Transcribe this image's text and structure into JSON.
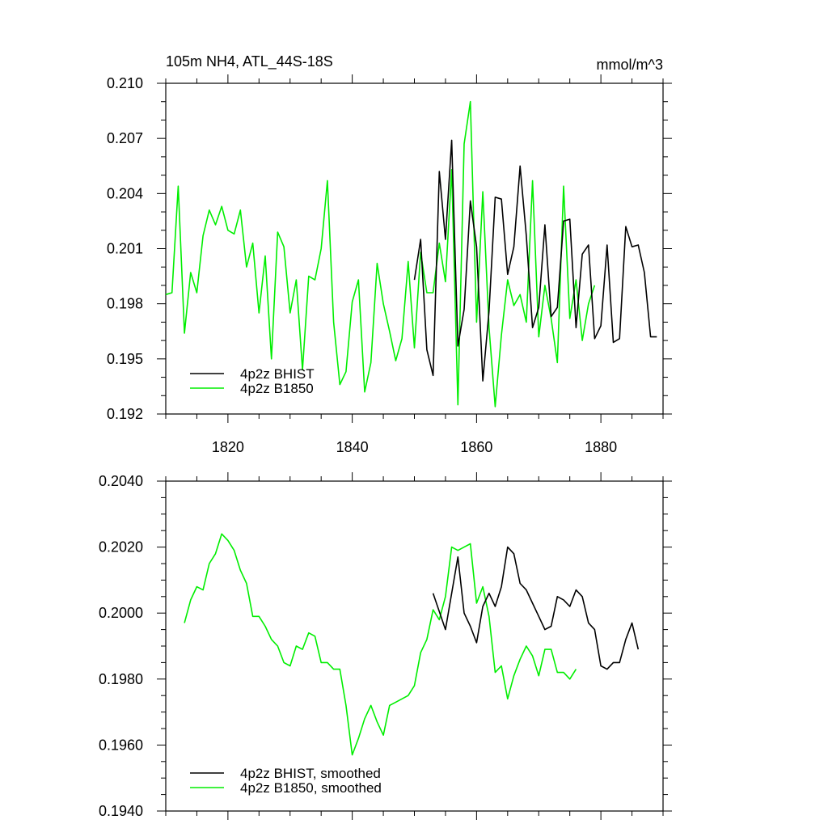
{
  "colors": {
    "bhist": "#000000",
    "b1850": "#00ee00"
  },
  "chart_data": [
    {
      "type": "line",
      "title": "105m NH4, ATL_44S-18S",
      "units": "mmol/m^3",
      "xlim": [
        1810,
        1890
      ],
      "ylim": [
        0.192,
        0.21
      ],
      "xticks": [
        1820,
        1840,
        1860,
        1880
      ],
      "xtick_labels": [
        "1820",
        "1840",
        "1860",
        "1880"
      ],
      "yticks": [
        0.192,
        0.195,
        0.198,
        0.201,
        0.204,
        0.207,
        0.21
      ],
      "ytick_labels": [
        "0.192",
        "0.195",
        "0.198",
        "0.201",
        "0.204",
        "0.207",
        "0.210"
      ],
      "legend_position": "bottom-left",
      "series": [
        {
          "name": "4p2z BHIST",
          "color_key": "bhist",
          "x": [
            1850,
            1851,
            1852,
            1853,
            1854,
            1855,
            1856,
            1857,
            1858,
            1859,
            1860,
            1861,
            1862,
            1863,
            1864,
            1865,
            1866,
            1867,
            1868,
            1869,
            1870,
            1871,
            1872,
            1873,
            1874,
            1875,
            1876,
            1877,
            1878,
            1879,
            1880,
            1881,
            1882,
            1883,
            1884,
            1885,
            1886,
            1887,
            1888,
            1889
          ],
          "values": [
            0.1993,
            0.2015,
            0.1955,
            0.1941,
            0.2052,
            0.2015,
            0.2069,
            0.1957,
            0.1977,
            0.2036,
            0.2011,
            0.1938,
            0.1976,
            0.2038,
            0.2037,
            0.1996,
            0.2011,
            0.2055,
            0.2017,
            0.1967,
            0.1978,
            0.2023,
            0.1973,
            0.1978,
            0.2025,
            0.2026,
            0.1967,
            0.2007,
            0.2012,
            0.1961,
            0.1968,
            0.2012,
            0.1959,
            0.1961,
            0.2022,
            0.2011,
            0.2012,
            0.1997,
            0.1962,
            0.1962
          ]
        },
        {
          "name": "4p2z B1850",
          "color_key": "b1850",
          "x": [
            1810,
            1811,
            1812,
            1813,
            1814,
            1815,
            1816,
            1817,
            1818,
            1819,
            1820,
            1821,
            1822,
            1823,
            1824,
            1825,
            1826,
            1827,
            1828,
            1829,
            1830,
            1831,
            1832,
            1833,
            1834,
            1835,
            1836,
            1837,
            1838,
            1839,
            1840,
            1841,
            1842,
            1843,
            1844,
            1845,
            1846,
            1847,
            1848,
            1849,
            1850,
            1851,
            1852,
            1853,
            1854,
            1855,
            1856,
            1857,
            1858,
            1859,
            1860,
            1861,
            1862,
            1863,
            1864,
            1865,
            1866,
            1867,
            1868,
            1869,
            1870,
            1871,
            1872,
            1873,
            1874,
            1875,
            1876,
            1877,
            1878,
            1879
          ],
          "values": [
            0.1985,
            0.1986,
            0.2044,
            0.1964,
            0.1997,
            0.1986,
            0.2017,
            0.2031,
            0.2023,
            0.2033,
            0.202,
            0.2018,
            0.2031,
            0.2,
            0.2013,
            0.1975,
            0.2006,
            0.195,
            0.2019,
            0.2011,
            0.1975,
            0.1993,
            0.1944,
            0.1995,
            0.1993,
            0.201,
            0.2047,
            0.197,
            0.1936,
            0.1943,
            0.1981,
            0.1993,
            0.1932,
            0.1948,
            0.2002,
            0.198,
            0.1965,
            0.1949,
            0.1961,
            0.2003,
            0.1956,
            0.2008,
            0.1986,
            0.1986,
            0.2013,
            0.1992,
            0.2053,
            0.1925,
            0.2067,
            0.209,
            0.197,
            0.2041,
            0.1967,
            0.1924,
            0.1963,
            0.1993,
            0.1979,
            0.1985,
            0.197,
            0.2047,
            0.1962,
            0.199,
            0.1972,
            0.1948,
            0.2044,
            0.1972,
            0.1993,
            0.196,
            0.198,
            0.199
          ]
        }
      ]
    },
    {
      "type": "line",
      "xlim": [
        1810,
        1890
      ],
      "ylim": [
        0.194,
        0.204
      ],
      "xticks": [
        1820,
        1840,
        1860,
        1880
      ],
      "yticks": [
        0.194,
        0.196,
        0.198,
        0.2,
        0.202,
        0.204
      ],
      "ytick_labels": [
        "0.1940",
        "0.1960",
        "0.1980",
        "0.2000",
        "0.2020",
        "0.2040"
      ],
      "legend_position": "bottom-left",
      "series": [
        {
          "name": "4p2z BHIST, smoothed",
          "color_key": "bhist",
          "x": [
            1853,
            1855,
            1857,
            1858,
            1859,
            1860,
            1861,
            1862,
            1863,
            1864,
            1865,
            1866,
            1867,
            1868,
            1869,
            1870,
            1871,
            1872,
            1873,
            1874,
            1875,
            1876,
            1877,
            1878,
            1879,
            1880,
            1881,
            1882,
            1883,
            1884,
            1885,
            1886
          ],
          "values": [
            0.2006,
            0.1995,
            0.2017,
            0.2,
            0.1996,
            0.1991,
            0.2002,
            0.2006,
            0.2002,
            0.2008,
            0.202,
            0.2018,
            0.2009,
            0.2007,
            0.2003,
            0.1999,
            0.1995,
            0.1996,
            0.2005,
            0.2004,
            0.2002,
            0.2007,
            0.2005,
            0.1997,
            0.1995,
            0.1984,
            0.1983,
            0.1985,
            0.1985,
            0.1992,
            0.1997,
            0.1989
          ]
        },
        {
          "name": "4p2z B1850, smoothed",
          "color_key": "b1850",
          "x": [
            1813,
            1814,
            1815,
            1816,
            1817,
            1818,
            1819,
            1820,
            1821,
            1822,
            1823,
            1824,
            1825,
            1826,
            1827,
            1828,
            1829,
            1830,
            1831,
            1832,
            1833,
            1834,
            1835,
            1836,
            1837,
            1838,
            1839,
            1840,
            1841,
            1842,
            1843,
            1844,
            1845,
            1846,
            1847,
            1848,
            1849,
            1850,
            1851,
            1852,
            1853,
            1854,
            1855,
            1856,
            1857,
            1858,
            1859,
            1860,
            1861,
            1862,
            1863,
            1864,
            1865,
            1866,
            1867,
            1868,
            1869,
            1870,
            1871,
            1872,
            1873,
            1874,
            1875,
            1876
          ],
          "values": [
            0.1997,
            0.2004,
            0.2008,
            0.2007,
            0.2015,
            0.2018,
            0.2024,
            0.2022,
            0.2019,
            0.2013,
            0.2009,
            0.1999,
            0.1999,
            0.1996,
            0.1992,
            0.199,
            0.1985,
            0.1984,
            0.199,
            0.1989,
            0.1994,
            0.1993,
            0.1985,
            0.1985,
            0.1983,
            0.1983,
            0.1972,
            0.1957,
            0.1962,
            0.1968,
            0.1972,
            0.1967,
            0.1963,
            0.1972,
            0.1973,
            0.1974,
            0.1975,
            0.1978,
            0.1988,
            0.1992,
            0.2001,
            0.1998,
            0.2005,
            0.202,
            0.2019,
            0.202,
            0.2021,
            0.2003,
            0.2008,
            0.1999,
            0.1982,
            0.1984,
            0.1974,
            0.1981,
            0.1986,
            0.199,
            0.1987,
            0.1981,
            0.1989,
            0.1989,
            0.1982,
            0.1982,
            0.198,
            0.1983
          ]
        }
      ]
    }
  ]
}
